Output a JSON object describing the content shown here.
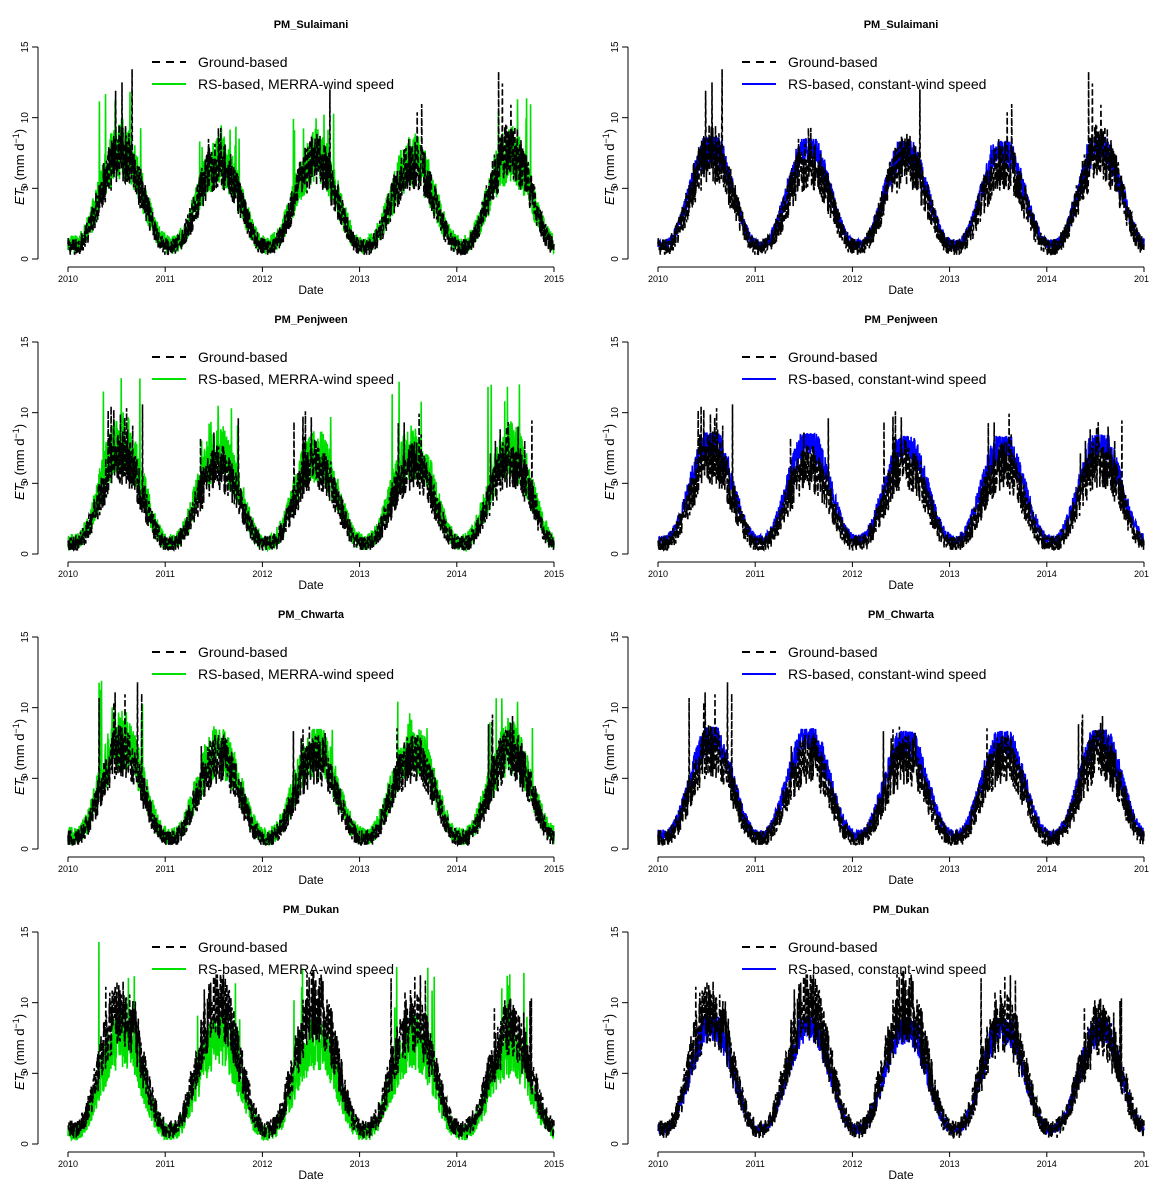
{
  "figure": {
    "colors": {
      "ground": "#000000",
      "rs_merra": "#00e000",
      "rs_merra_alt": "#0000ff",
      "rs_const": "#0000ff",
      "axis": "#000000"
    },
    "x_ticks": [
      "2010",
      "2011",
      "2012",
      "2013",
      "2014",
      "2015"
    ],
    "y_ticks": [
      "0",
      "5",
      "10",
      "15"
    ],
    "xlabel": "Date",
    "ylabel_main": "ET",
    "ylabel_sub": "o",
    "ylabel_units": "(mm  d",
    "ylabel_exp": "−1",
    "ylabel_close": ")"
  },
  "chart_data": [
    {
      "type": "line",
      "title": "PM_Sulaimani",
      "xlabel": "Date",
      "ylabel": "ETo (mm d−1)",
      "xlim": [
        2010,
        2015
      ],
      "ylim": [
        0,
        15
      ],
      "legend_position": "top-center",
      "series": [
        {
          "name": "Ground-based",
          "style": "dashed",
          "color": "#000000",
          "seasonal_min": 0.8,
          "seasonal_max": [
            7.5,
            6.8,
            7.0,
            6.8,
            7.6
          ],
          "peak_max": [
            13.5,
            9.8,
            12.3,
            11.5,
            13.5
          ]
        },
        {
          "name": "RS-based, MERRA-wind speed",
          "style": "solid",
          "color": "#00e000",
          "seasonal_min": 1.0,
          "seasonal_max": [
            7.8,
            7.0,
            7.2,
            7.0,
            7.4
          ],
          "peak_max": [
            12.5,
            9.5,
            10.5,
            11.0,
            12.0
          ]
        }
      ]
    },
    {
      "type": "line",
      "title": "PM_Sulaimani",
      "xlabel": "Date",
      "ylabel": "ETo (mm d−1)",
      "xlim": [
        2010,
        2015
      ],
      "ylim": [
        0,
        15
      ],
      "legend_position": "top-center",
      "series": [
        {
          "name": "Ground-based",
          "style": "dashed",
          "color": "#000000",
          "seasonal_min": 0.8,
          "seasonal_max": [
            7.5,
            6.8,
            7.0,
            6.8,
            7.6
          ],
          "peak_max": [
            13.5,
            9.8,
            12.3,
            11.5,
            13.5
          ]
        },
        {
          "name": "RS-based, constant-wind speed",
          "style": "solid",
          "color": "#0000ff",
          "seasonal_min": 1.0,
          "seasonal_max": [
            8.0,
            8.0,
            7.8,
            7.8,
            8.0
          ],
          "peak_max": [
            8.6,
            8.5,
            8.3,
            8.3,
            8.6
          ]
        }
      ]
    },
    {
      "type": "line",
      "title": "PM_Penjween",
      "xlabel": "Date",
      "ylabel": "ETo (mm d−1)",
      "xlim": [
        2010,
        2015
      ],
      "ylim": [
        0,
        15
      ],
      "legend_position": "top-center",
      "series": [
        {
          "name": "Ground-based",
          "style": "dashed",
          "color": "#000000",
          "seasonal_min": 0.7,
          "seasonal_max": [
            6.8,
            6.2,
            6.4,
            6.2,
            6.5
          ],
          "peak_max": [
            10.8,
            9.8,
            10.4,
            10.4,
            9.5
          ]
        },
        {
          "name": "RS-based, MERRA-wind speed",
          "style": "solid",
          "color": "#00e000",
          "seasonal_min": 0.8,
          "seasonal_max": [
            8.0,
            7.2,
            7.0,
            7.2,
            7.4
          ],
          "peak_max": [
            14.2,
            11.3,
            10.5,
            12.7,
            12.7
          ]
        }
      ]
    },
    {
      "type": "line",
      "title": "PM_Penjween",
      "xlabel": "Date",
      "ylabel": "ETo (mm d−1)",
      "xlim": [
        2010,
        2015
      ],
      "ylim": [
        0,
        15
      ],
      "legend_position": "top-center",
      "series": [
        {
          "name": "Ground-based",
          "style": "dashed",
          "color": "#000000",
          "seasonal_min": 0.7,
          "seasonal_max": [
            6.8,
            6.2,
            6.4,
            6.2,
            6.5
          ],
          "peak_max": [
            10.8,
            9.8,
            10.4,
            10.4,
            9.5
          ]
        },
        {
          "name": "RS-based, constant-wind speed",
          "style": "solid",
          "color": "#0000ff",
          "seasonal_min": 1.0,
          "seasonal_max": [
            8.0,
            8.0,
            7.8,
            7.8,
            8.0
          ],
          "peak_max": [
            8.6,
            8.5,
            8.3,
            8.3,
            8.4
          ]
        }
      ]
    },
    {
      "type": "line",
      "title": "PM_Chwarta",
      "xlabel": "Date",
      "ylabel": "ETo (mm d−1)",
      "xlim": [
        2010,
        2015
      ],
      "ylim": [
        0,
        15
      ],
      "legend_position": "top-center",
      "series": [
        {
          "name": "Ground-based",
          "style": "dashed",
          "color": "#000000",
          "seasonal_min": 0.7,
          "seasonal_max": [
            7.0,
            6.5,
            6.4,
            6.5,
            6.8
          ],
          "peak_max": [
            12.0,
            8.5,
            8.8,
            8.8,
            9.8
          ]
        },
        {
          "name": "RS-based, MERRA-wind speed",
          "style": "solid",
          "color": "#00e000",
          "seasonal_min": 0.9,
          "seasonal_max": [
            7.8,
            7.0,
            7.0,
            7.2,
            7.2
          ],
          "peak_max": [
            12.4,
            8.8,
            8.5,
            10.9,
            10.9
          ]
        }
      ]
    },
    {
      "type": "line",
      "title": "PM_Chwarta",
      "xlabel": "Date",
      "ylabel": "ETo (mm d−1)",
      "xlim": [
        2010,
        2015
      ],
      "ylim": [
        0,
        15
      ],
      "legend_position": "top-center",
      "series": [
        {
          "name": "Ground-based",
          "style": "dashed",
          "color": "#000000",
          "seasonal_min": 0.7,
          "seasonal_max": [
            7.0,
            6.5,
            6.4,
            6.5,
            6.8
          ],
          "peak_max": [
            12.0,
            8.5,
            8.8,
            8.8,
            9.8
          ]
        },
        {
          "name": "RS-based, constant-wind speed",
          "style": "solid",
          "color": "#0000ff",
          "seasonal_min": 1.0,
          "seasonal_max": [
            8.0,
            8.0,
            7.8,
            7.8,
            8.0
          ],
          "peak_max": [
            8.6,
            8.5,
            8.3,
            8.3,
            8.4
          ]
        }
      ]
    },
    {
      "type": "line",
      "title": "PM_Dukan",
      "xlabel": "Date",
      "ylabel": "ETo (mm d−1)",
      "xlim": [
        2010,
        2015
      ],
      "ylim": [
        0,
        15
      ],
      "legend_position": "top-center",
      "series": [
        {
          "name": "Ground-based",
          "style": "dashed",
          "color": "#000000",
          "seasonal_min": 1.0,
          "seasonal_max": [
            9.5,
            9.8,
            9.8,
            8.8,
            8.0
          ],
          "peak_max": [
            11.5,
            12.0,
            13.5,
            12.0,
            10.5
          ]
        },
        {
          "name": "RS-based, MERRA-wind speed",
          "style": "solid",
          "color": "#00e000",
          "seasonal_min": 0.8,
          "seasonal_max": [
            7.5,
            7.5,
            7.2,
            7.2,
            6.5
          ],
          "peak_max": [
            14.3,
            11.8,
            13.0,
            12.8,
            12.7
          ]
        }
      ]
    },
    {
      "type": "line",
      "title": "PM_Dukan",
      "xlabel": "Date",
      "ylabel": "ETo (mm d−1)",
      "xlim": [
        2010,
        2015
      ],
      "ylim": [
        0,
        15
      ],
      "legend_position": "top-center",
      "series": [
        {
          "name": "Ground-based",
          "style": "dashed",
          "color": "#000000",
          "seasonal_min": 1.0,
          "seasonal_max": [
            9.5,
            9.8,
            9.8,
            8.8,
            8.0
          ],
          "peak_max": [
            11.5,
            12.0,
            13.5,
            12.0,
            10.5
          ]
        },
        {
          "name": "RS-based, constant-wind speed",
          "style": "solid",
          "color": "#0000ff",
          "seasonal_min": 1.0,
          "seasonal_max": [
            8.5,
            8.5,
            8.3,
            8.3,
            8.2
          ],
          "peak_max": [
            9.0,
            9.0,
            8.8,
            8.8,
            8.8
          ]
        }
      ]
    }
  ]
}
